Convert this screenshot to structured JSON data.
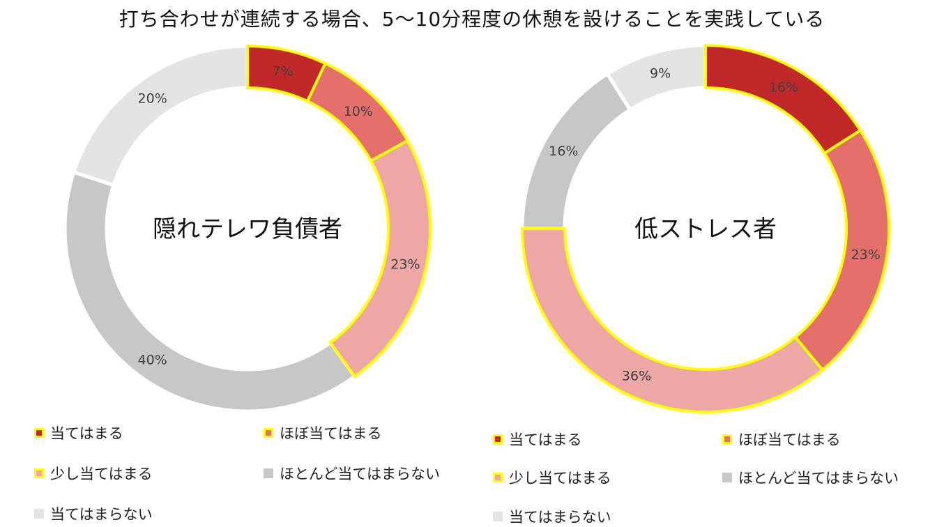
{
  "title": "打ち合わせが連続する場合、5〜10分程度の休憩を設けることを実践している",
  "colors": {
    "c1": "#C0282A",
    "c2": "#E5706B",
    "c3": "#EDA7A5",
    "c4": "#C7C7C7",
    "c5": "#E3E3E3",
    "highlight": "#FFFF00"
  },
  "chart_data": [
    {
      "type": "pie",
      "subtype": "donut",
      "center_label": "隠れテレワ負債者",
      "categories": [
        "当てはまる",
        "ほぼ当てはまる",
        "少し当てはまる",
        "ほとんど当てはまらない",
        "当てはまらない"
      ],
      "values": [
        7,
        10,
        23,
        40,
        20
      ],
      "data_labels": [
        "7%",
        "10%",
        "23%",
        "40%",
        "20%"
      ],
      "highlighted": [
        true,
        true,
        true,
        false,
        false
      ],
      "legend_position": "bottom"
    },
    {
      "type": "pie",
      "subtype": "donut",
      "center_label": "低ストレス者",
      "categories": [
        "当てはまる",
        "ほぼ当てはまる",
        "少し当てはまる",
        "ほとんど当てはまらない",
        "当てはまらない"
      ],
      "values": [
        16,
        23,
        36,
        16,
        9
      ],
      "data_labels": [
        "16%",
        "23%",
        "36%",
        "16%",
        "9%"
      ],
      "highlighted": [
        true,
        true,
        true,
        false,
        false
      ],
      "legend_position": "bottom"
    }
  ]
}
